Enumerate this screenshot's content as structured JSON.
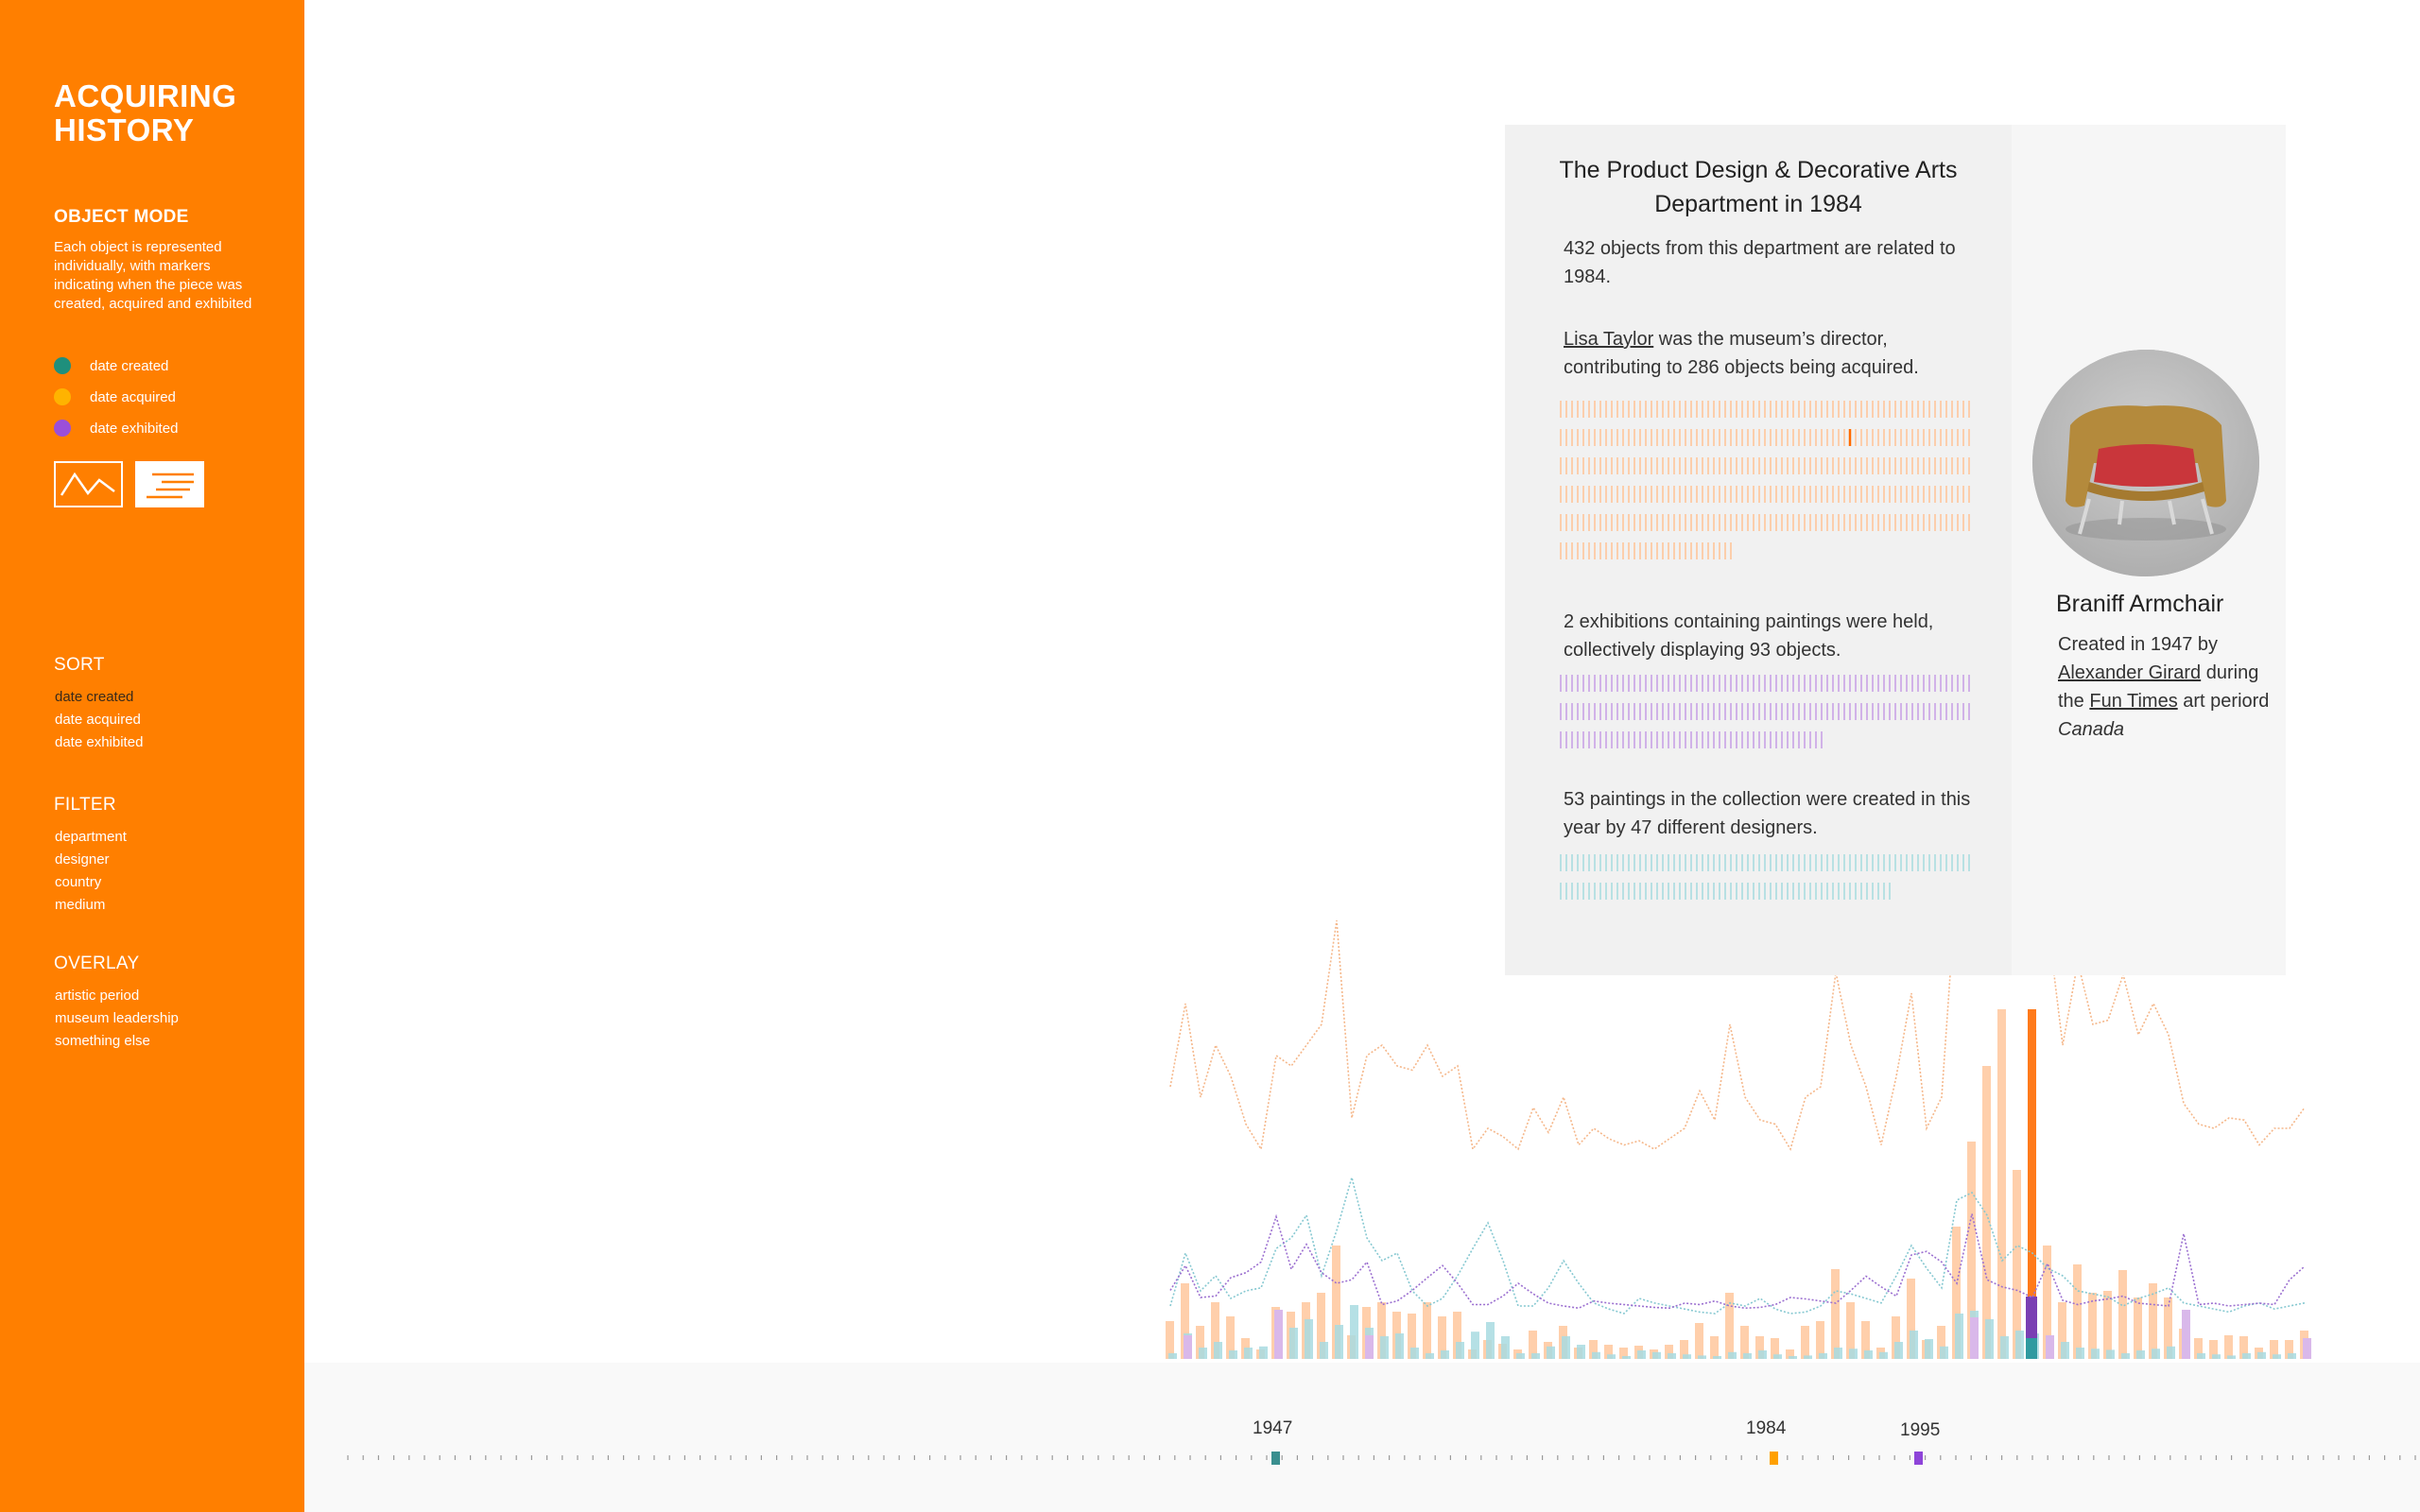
{
  "app": {
    "title": "ACQUIRING HISTORY"
  },
  "sidebar": {
    "object_mode": {
      "heading": "OBJECT MODE",
      "description": "Each object is represented individually, with markers indicating when the piece was created, acquired and exhibited"
    },
    "legend": [
      {
        "label": "date created",
        "color": "#1f8f7c"
      },
      {
        "label": "date acquired",
        "color": "#ffb300"
      },
      {
        "label": "date exhibited",
        "color": "#9b4fd9"
      }
    ],
    "view_toggle": {
      "line": "line-chart-icon",
      "bars": "bars-icon"
    },
    "sort": {
      "heading": "SORT",
      "items": [
        "date created",
        "date acquired",
        "date exhibited"
      ],
      "active": "date created"
    },
    "filter": {
      "heading": "FILTER",
      "items": [
        "department",
        "designer",
        "country",
        "medium"
      ]
    },
    "overlay": {
      "heading": "OVERLAY",
      "items": [
        "artistic period",
        "museum leadership",
        "something else"
      ]
    }
  },
  "panel": {
    "title": "The Product Design & Decorative Arts Department in 1984",
    "objects_text": "432 objects from this department are related to 1984.",
    "director_name": "Lisa Taylor",
    "director_text": " was the museum’s director, contributing to 286 objects being acquired.",
    "exhibitions_text": "2 exhibitions containing paintings were held, collectively displaying 93 objects.",
    "paintings_text": "53 paintings in the collection were created in this year by 47 different designers."
  },
  "object": {
    "name": "Braniff Armchair",
    "created_prefix": "Created in 1947 by ",
    "designer": "Alexander Girard",
    "during": " during the ",
    "period": "Fun Times",
    "period_suffix": " art periord",
    "country": "Canada"
  },
  "timeline": {
    "markers": [
      {
        "label": "1947",
        "color": "#3a8f8f"
      },
      {
        "label": "1984",
        "color": "#ffa000"
      },
      {
        "label": "1995",
        "color": "#8e44d9"
      }
    ]
  },
  "chart_data": {
    "type": "bar",
    "x_range": [
      1927,
      2026
    ],
    "highlight_year": 1984,
    "series": [
      {
        "values": [
          40,
          80,
          35,
          60,
          45,
          22,
          10,
          55,
          50,
          60,
          70,
          120,
          25,
          55,
          60,
          50,
          48,
          60,
          45,
          50,
          10,
          20,
          16,
          10,
          30,
          18,
          35,
          12,
          20,
          15,
          12,
          14,
          10,
          15,
          20,
          38,
          24,
          70,
          35,
          24,
          22,
          10,
          35,
          40,
          95,
          60,
          40,
          12,
          45,
          85,
          20,
          35,
          140,
          230,
          310,
          370,
          200,
          140,
          120,
          60,
          100,
          70,
          72,
          94,
          65,
          80,
          65,
          32,
          22,
          20,
          25,
          24,
          12,
          20,
          20,
          30
        ]
      },
      {
        "values": [
          10,
          45,
          20,
          30,
          15,
          20,
          22,
          48,
          55,
          70,
          30,
          60,
          95,
          55,
          40,
          45,
          20,
          10,
          15,
          30,
          48,
          65,
          40,
          10,
          10,
          22,
          40,
          25,
          12,
          8,
          5,
          15,
          12,
          10,
          8,
          6,
          5,
          12,
          10,
          15,
          8,
          5,
          6,
          10,
          20,
          18,
          15,
          12,
          30,
          50,
          35,
          22,
          80,
          85,
          70,
          40,
          50,
          45,
          35,
          30,
          20,
          18,
          16,
          10,
          15,
          18,
          22,
          12,
          10,
          8,
          6,
          10,
          12,
          8,
          10,
          12
        ]
      },
      {
        "values": [
          0,
          25,
          0,
          0,
          0,
          0,
          0,
          52,
          0,
          0,
          0,
          0,
          0,
          25,
          0,
          0,
          0,
          0,
          0,
          0,
          0,
          0,
          0,
          0,
          0,
          0,
          0,
          0,
          0,
          0,
          0,
          0,
          0,
          0,
          0,
          0,
          0,
          0,
          0,
          0,
          0,
          0,
          0,
          0,
          0,
          0,
          0,
          0,
          0,
          0,
          0,
          0,
          0,
          44,
          0,
          0,
          0,
          0,
          25,
          0,
          0,
          0,
          0,
          0,
          0,
          0,
          0,
          52,
          0,
          0,
          0,
          0,
          0,
          0,
          0,
          22
        ]
      }
    ]
  }
}
